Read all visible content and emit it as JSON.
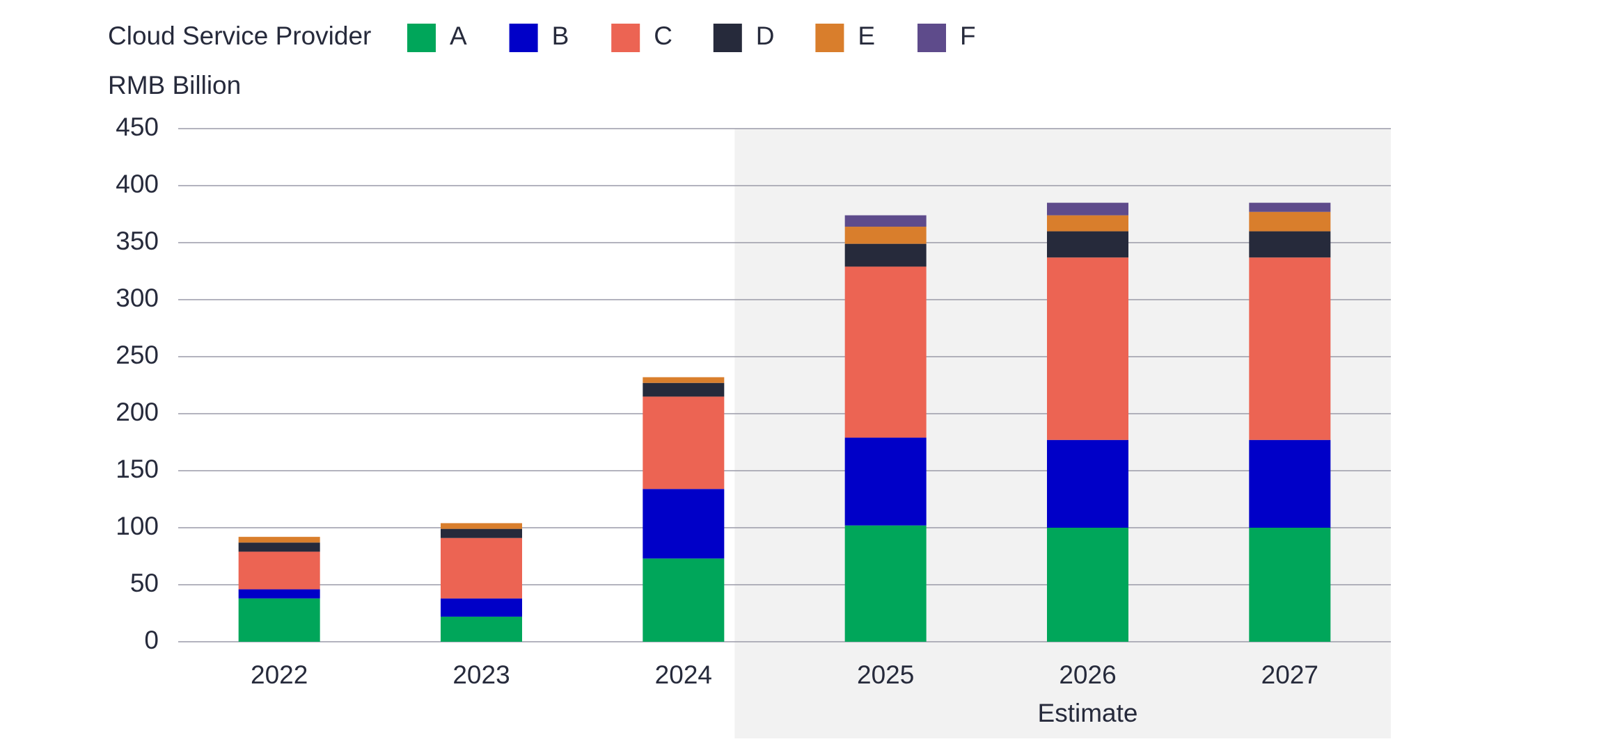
{
  "chart_data": {
    "type": "stacked_bar",
    "legend_title": "Cloud Service Provider",
    "y_label": "RMB Billion",
    "categories": [
      "2022",
      "2023",
      "2024",
      "2025",
      "2026",
      "2027"
    ],
    "series": [
      {
        "name": "A",
        "color": "#00a65a",
        "values": [
          38,
          22,
          73,
          102,
          100,
          100
        ]
      },
      {
        "name": "B",
        "color": "#0000c8",
        "values": [
          8,
          16,
          61,
          77,
          77,
          77
        ]
      },
      {
        "name": "C",
        "color": "#ec6453",
        "values": [
          33,
          53,
          81,
          150,
          160,
          160
        ]
      },
      {
        "name": "D",
        "color": "#262a3b",
        "values": [
          8,
          8,
          12,
          20,
          23,
          23
        ]
      },
      {
        "name": "E",
        "color": "#d97e2c",
        "values": [
          5,
          5,
          5,
          15,
          14,
          17
        ]
      },
      {
        "name": "F",
        "color": "#5e4b8b",
        "values": [
          0,
          0,
          0,
          10,
          11,
          8
        ]
      }
    ],
    "estimate": {
      "label": "Estimate",
      "from": "2025",
      "to": "2027",
      "color": "#f2f2f2"
    },
    "ylim": [
      0,
      450
    ],
    "yticks": [
      0,
      50,
      100,
      150,
      200,
      250,
      300,
      350,
      400,
      450
    ],
    "grid": true
  }
}
